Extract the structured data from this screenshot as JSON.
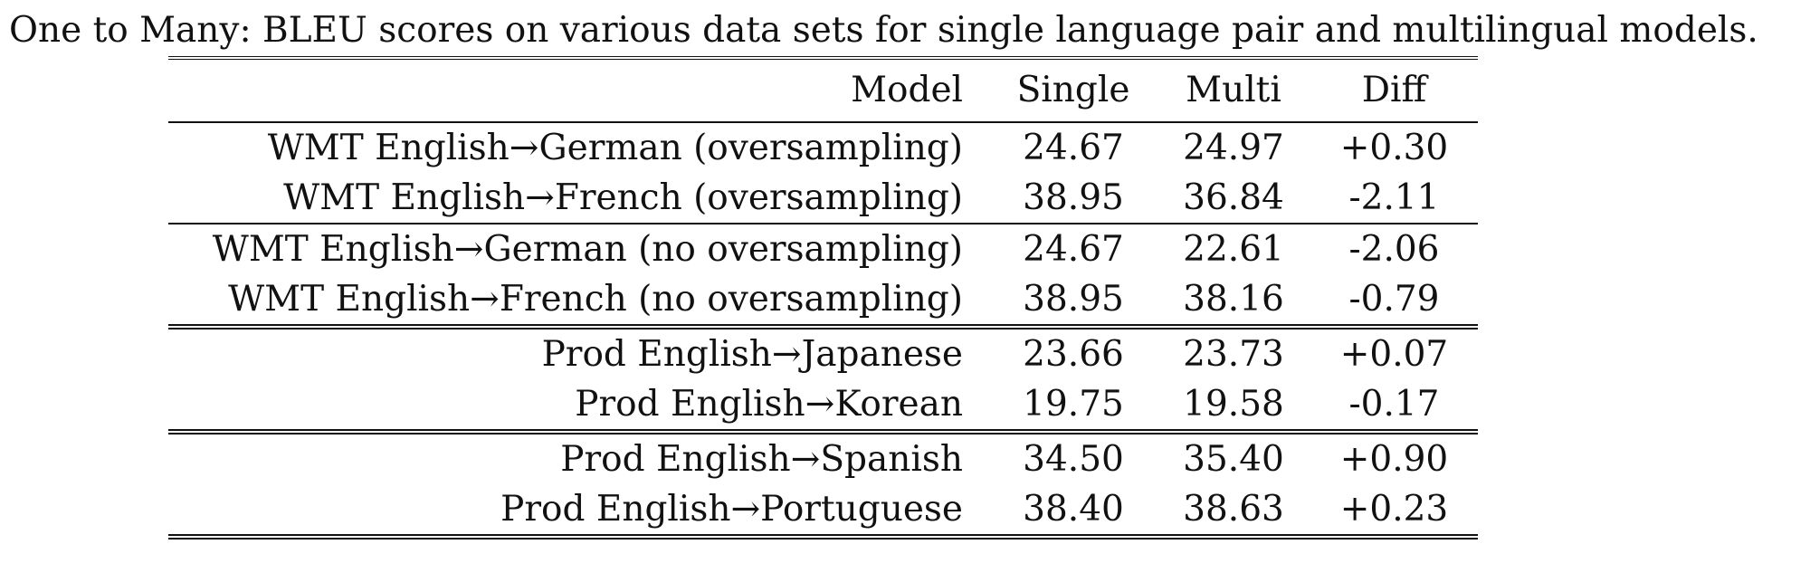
{
  "caption": "One to Many: BLEU scores on various data sets for single language pair and multilingual models.",
  "table": {
    "headers": {
      "model": "Model",
      "single": "Single",
      "multi": "Multi",
      "diff": "Diff"
    },
    "rows": [
      {
        "model": "WMT English→German (oversampling)",
        "single": "24.67",
        "multi": "24.97",
        "diff": "+0.30"
      },
      {
        "model": "WMT English→French (oversampling)",
        "single": "38.95",
        "multi": "36.84",
        "diff": "-2.11"
      },
      {
        "model": "WMT English→German (no oversampling)",
        "single": "24.67",
        "multi": "22.61",
        "diff": "-2.06"
      },
      {
        "model": "WMT English→French (no oversampling)",
        "single": "38.95",
        "multi": "38.16",
        "diff": "-0.79"
      },
      {
        "model": "Prod English→Japanese",
        "single": "23.66",
        "multi": "23.73",
        "diff": "+0.07"
      },
      {
        "model": "Prod English→Korean",
        "single": "19.75",
        "multi": "19.58",
        "diff": "-0.17"
      },
      {
        "model": "Prod English→Spanish",
        "single": "34.50",
        "multi": "35.40",
        "diff": "+0.90"
      },
      {
        "model": "Prod English→Portuguese",
        "single": "38.40",
        "multi": "38.63",
        "diff": "+0.23"
      }
    ]
  }
}
